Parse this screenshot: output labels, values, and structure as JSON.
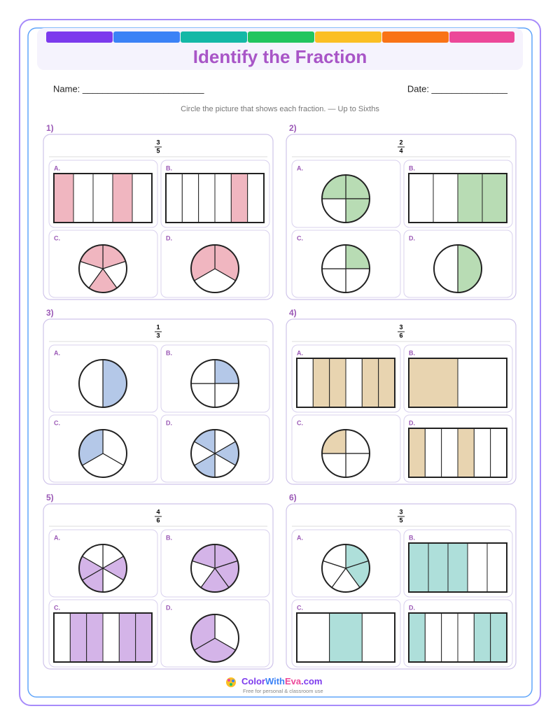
{
  "header": {
    "title": "Identify the Fraction"
  },
  "fields": {
    "name": "Name: ________________________",
    "date": "Date: _______________"
  },
  "instructions": "Circle the picture that shows each fraction. — Up to Sixths",
  "problems": [
    {
      "number": "1)",
      "numerator": 3,
      "denominator": 5,
      "options": [
        "A.",
        "B.",
        "C.",
        "D."
      ]
    },
    {
      "number": "2)",
      "numerator": 2,
      "denominator": 4,
      "options": [
        "A.",
        "B.",
        "C.",
        "D."
      ]
    },
    {
      "number": "3)",
      "numerator": 1,
      "denominator": 3,
      "options": [
        "A.",
        "B.",
        "C.",
        "D."
      ]
    },
    {
      "number": "4)",
      "numerator": 3,
      "denominator": 6,
      "options": [
        "A.",
        "B.",
        "C.",
        "D."
      ]
    },
    {
      "number": "5)",
      "numerator": 4,
      "denominator": 6,
      "options": [
        "A.",
        "B.",
        "C.",
        "D."
      ]
    },
    {
      "number": "6)",
      "numerator": 3,
      "denominator": 5,
      "options": [
        "A.",
        "B.",
        "C.",
        "D."
      ]
    }
  ],
  "footer": {
    "brand_color": "Color",
    "brand_with": "With",
    "brand_eva": "Eva",
    "brand_com": ".com",
    "tagline": "Free for personal & classroom use"
  }
}
